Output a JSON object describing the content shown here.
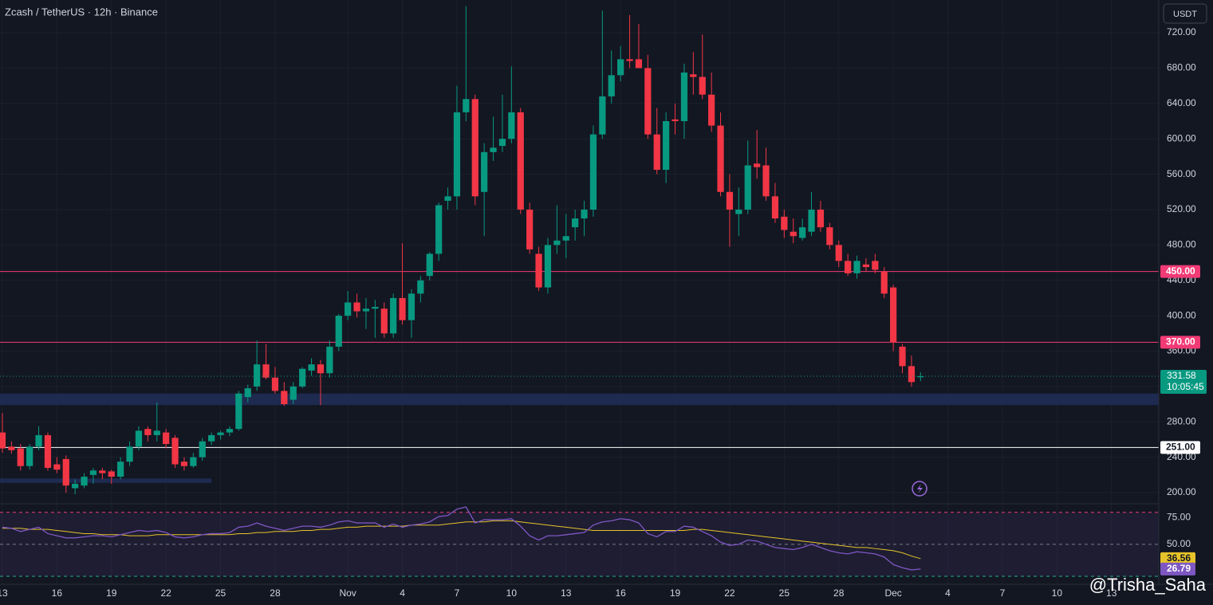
{
  "chart_data": {
    "type": "candlestick",
    "title": "Zcash / TetherUS · 12h · Binance",
    "currency": "USDT",
    "countdown": "10:05:45",
    "watermark": "@Trisha_Saha",
    "up_color": "#089981",
    "down_color": "#f23645",
    "xlim": [
      -0.26,
      127.2
    ],
    "xticks": [
      {
        "value": 0,
        "label": "13"
      },
      {
        "value": 6,
        "label": "16"
      },
      {
        "value": 12,
        "label": "19"
      },
      {
        "value": 18,
        "label": "22"
      },
      {
        "value": 24,
        "label": "25"
      },
      {
        "value": 30,
        "label": "28"
      },
      {
        "value": 38,
        "label": "Nov"
      },
      {
        "value": 44,
        "label": "4"
      },
      {
        "value": 50,
        "label": "7"
      },
      {
        "value": 56,
        "label": "10"
      },
      {
        "value": 62,
        "label": "13"
      },
      {
        "value": 68,
        "label": "16"
      },
      {
        "value": 74,
        "label": "19"
      },
      {
        "value": 80,
        "label": "22"
      },
      {
        "value": 86,
        "label": "25"
      },
      {
        "value": 92,
        "label": "28"
      },
      {
        "value": 98,
        "label": "Dec"
      },
      {
        "value": 104,
        "label": "4"
      },
      {
        "value": 110,
        "label": "7"
      },
      {
        "value": 116,
        "label": "10"
      },
      {
        "value": 122,
        "label": "13"
      }
    ],
    "ylim": [
      187.4,
      757
    ],
    "yticks": [
      {
        "value": 200,
        "label": "200.00"
      },
      {
        "value": 240,
        "label": "240.00"
      },
      {
        "value": 280,
        "label": "280.00"
      },
      {
        "value": 320,
        "label": "320.00"
      },
      {
        "value": 360,
        "label": "360.00"
      },
      {
        "value": 400,
        "label": "400.00"
      },
      {
        "value": 440,
        "label": "440.00"
      },
      {
        "value": 480,
        "label": "480.00"
      },
      {
        "value": 520,
        "label": "520.00"
      },
      {
        "value": 560,
        "label": "560.00"
      },
      {
        "value": 600,
        "label": "600.00"
      },
      {
        "value": 640,
        "label": "640.00"
      },
      {
        "value": 680,
        "label": "680.00"
      },
      {
        "value": 720,
        "label": "720.00"
      }
    ],
    "levels": [
      {
        "value": 450,
        "label": "450.00",
        "color": "#f23a75"
      },
      {
        "value": 370,
        "label": "370.00",
        "color": "#f23a75"
      },
      {
        "value": 251,
        "label": "251.00",
        "color": "#ffffff"
      }
    ],
    "zones": [
      {
        "from": 299,
        "to": 312,
        "color": "#1e2a50"
      },
      {
        "from": 211,
        "to": 216,
        "color": "#1e2a50",
        "x_end": 23
      }
    ],
    "ohlc": [
      [
        268,
        290,
        245,
        250
      ],
      [
        252,
        258,
        244,
        248
      ],
      [
        250,
        255,
        225,
        230
      ],
      [
        230,
        255,
        226,
        252
      ],
      [
        252,
        275,
        248,
        265
      ],
      [
        265,
        268,
        225,
        228
      ],
      [
        232,
        240,
        222,
        226
      ],
      [
        238,
        242,
        200,
        208
      ],
      [
        205,
        215,
        198,
        210
      ],
      [
        208,
        222,
        205,
        218
      ],
      [
        220,
        228,
        210,
        225
      ],
      [
        225,
        228,
        215,
        222
      ],
      [
        224,
        226,
        210,
        218
      ],
      [
        218,
        240,
        215,
        235
      ],
      [
        235,
        258,
        230,
        252
      ],
      [
        252,
        275,
        248,
        270
      ],
      [
        272,
        275,
        258,
        265
      ],
      [
        265,
        302,
        258,
        270
      ],
      [
        268,
        272,
        250,
        255
      ],
      [
        262,
        265,
        228,
        232
      ],
      [
        235,
        240,
        225,
        230
      ],
      [
        230,
        245,
        228,
        240
      ],
      [
        240,
        262,
        236,
        258
      ],
      [
        258,
        268,
        254,
        265
      ],
      [
        265,
        270,
        260,
        268
      ],
      [
        268,
        275,
        264,
        272
      ],
      [
        272,
        315,
        270,
        312
      ],
      [
        308,
        322,
        302,
        318
      ],
      [
        320,
        372,
        315,
        345
      ],
      [
        345,
        368,
        328,
        330
      ],
      [
        330,
        342,
        312,
        315
      ],
      [
        315,
        325,
        298,
        300
      ],
      [
        305,
        325,
        300,
        320
      ],
      [
        320,
        342,
        318,
        340
      ],
      [
        338,
        352,
        332,
        345
      ],
      [
        345,
        350,
        299,
        335
      ],
      [
        335,
        372,
        330,
        365
      ],
      [
        365,
        402,
        360,
        400
      ],
      [
        400,
        428,
        395,
        415
      ],
      [
        415,
        425,
        398,
        405
      ],
      [
        405,
        420,
        385,
        408
      ],
      [
        408,
        418,
        375,
        410
      ],
      [
        408,
        415,
        375,
        380
      ],
      [
        380,
        425,
        375,
        420
      ],
      [
        420,
        482,
        390,
        395
      ],
      [
        395,
        430,
        375,
        425
      ],
      [
        425,
        445,
        415,
        440
      ],
      [
        445,
        472,
        440,
        470
      ],
      [
        470,
        528,
        462,
        525
      ],
      [
        530,
        545,
        520,
        535
      ],
      [
        535,
        660,
        520,
        630
      ],
      [
        630,
        750,
        620,
        645
      ],
      [
        645,
        650,
        525,
        535
      ],
      [
        540,
        595,
        490,
        585
      ],
      [
        585,
        625,
        575,
        590
      ],
      [
        592,
        650,
        585,
        600
      ],
      [
        600,
        682,
        595,
        630
      ],
      [
        630,
        635,
        515,
        520
      ],
      [
        520,
        528,
        470,
        475
      ],
      [
        470,
        478,
        428,
        432
      ],
      [
        432,
        488,
        425,
        480
      ],
      [
        480,
        525,
        470,
        485
      ],
      [
        485,
        515,
        465,
        490
      ],
      [
        500,
        520,
        485,
        510
      ],
      [
        510,
        530,
        490,
        520
      ],
      [
        520,
        615,
        512,
        605
      ],
      [
        605,
        745,
        600,
        648
      ],
      [
        648,
        700,
        640,
        672
      ],
      [
        672,
        705,
        665,
        690
      ],
      [
        690,
        740,
        680,
        688
      ],
      [
        690,
        730,
        680,
        680
      ],
      [
        680,
        695,
        600,
        605
      ],
      [
        605,
        635,
        560,
        565
      ],
      [
        565,
        630,
        550,
        620
      ],
      [
        622,
        640,
        605,
        620
      ],
      [
        620,
        685,
        600,
        675
      ],
      [
        673,
        698,
        650,
        670
      ],
      [
        670,
        718,
        645,
        650
      ],
      [
        650,
        675,
        608,
        615
      ],
      [
        615,
        630,
        535,
        540
      ],
      [
        540,
        560,
        478,
        520
      ],
      [
        515,
        545,
        490,
        520
      ],
      [
        520,
        598,
        515,
        570
      ],
      [
        572,
        610,
        555,
        568
      ],
      [
        570,
        590,
        530,
        535
      ],
      [
        535,
        550,
        505,
        510
      ],
      [
        512,
        520,
        488,
        497
      ],
      [
        495,
        510,
        482,
        490
      ],
      [
        488,
        510,
        485,
        500
      ],
      [
        495,
        540,
        490,
        520
      ],
      [
        520,
        530,
        495,
        500
      ],
      [
        500,
        505,
        475,
        480
      ],
      [
        480,
        485,
        455,
        462
      ],
      [
        462,
        470,
        445,
        448
      ],
      [
        448,
        468,
        442,
        462
      ],
      [
        458,
        465,
        450,
        455
      ],
      [
        462,
        470,
        448,
        452
      ],
      [
        450,
        455,
        420,
        425
      ],
      [
        432,
        435,
        360,
        370
      ],
      [
        365,
        368,
        335,
        343
      ],
      [
        343,
        355,
        320,
        325
      ],
      [
        330.5,
        336,
        326,
        331.58
      ]
    ],
    "rsi": {
      "ylim": [
        12.5,
        88
      ],
      "yticks": [
        {
          "value": 50,
          "label": "50.00"
        },
        {
          "value": 75,
          "label": "75.00"
        }
      ],
      "bands": [
        80,
        50,
        20
      ],
      "series": [
        {
          "name": "RSI",
          "color": "#7e57c2",
          "values": [
            66,
            65,
            62,
            64,
            66,
            60,
            58,
            56,
            56,
            57,
            58,
            58,
            57,
            59,
            61,
            63,
            62,
            63,
            61,
            57,
            56,
            57,
            59,
            60,
            60,
            61,
            66,
            67,
            70,
            67,
            65,
            63,
            65,
            67,
            67,
            66,
            68,
            71,
            72,
            70,
            70,
            70,
            66,
            69,
            66,
            68,
            69,
            71,
            76,
            77,
            83,
            85,
            70,
            73,
            73,
            73,
            74,
            67,
            58,
            54,
            58,
            58,
            59,
            60,
            61,
            68,
            71,
            72,
            74,
            73,
            70,
            60,
            57,
            62,
            62,
            67,
            66,
            62,
            58,
            52,
            49,
            50,
            54,
            53,
            50,
            47,
            46,
            45,
            47,
            50,
            47,
            44,
            42,
            41,
            43,
            42,
            41,
            38,
            31,
            28,
            26,
            26.79
          ]
        },
        {
          "name": "RSI-based MA",
          "color": "#e6c32a",
          "values": [
            65,
            65,
            65,
            64,
            64,
            64,
            63,
            62,
            61,
            60,
            60,
            59,
            59,
            59,
            58,
            58,
            58,
            59,
            59,
            59,
            59,
            59,
            59,
            59,
            59,
            59,
            60,
            60,
            61,
            61,
            62,
            62,
            62,
            63,
            63,
            64,
            64,
            65,
            66,
            66,
            67,
            67,
            67,
            67,
            67,
            68,
            68,
            68,
            68,
            69,
            70,
            71,
            71,
            71,
            72,
            72,
            72,
            71,
            70,
            69,
            68,
            67,
            66,
            65,
            64,
            63,
            63,
            63,
            63,
            63,
            63,
            63,
            63,
            63,
            63,
            63,
            64,
            64,
            63,
            62,
            61,
            60,
            59,
            58,
            57,
            56,
            55,
            54,
            53,
            52,
            51,
            50,
            49,
            48,
            47,
            47,
            46,
            45,
            44,
            42,
            39,
            36.56
          ]
        }
      ]
    }
  }
}
